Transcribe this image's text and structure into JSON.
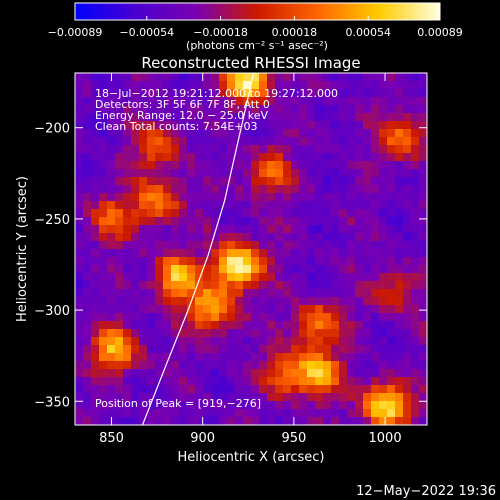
{
  "chart_data": {
    "type": "heatmap",
    "title": "Reconstructed RHESSI Image",
    "xlabel": "Heliocentric X (arcsec)",
    "ylabel": "Heliocentric Y (arcsec)",
    "xlim": [
      830,
      1023
    ],
    "ylim": [
      -363,
      -170
    ],
    "x_ticks": [
      850,
      900,
      950,
      1000
    ],
    "x_tick_labels": [
      "850",
      "900",
      "950",
      "1000"
    ],
    "y_ticks": [
      -200,
      -250,
      -300,
      -350
    ],
    "y_tick_labels": [
      "−200",
      "−250",
      "−300",
      "−350"
    ],
    "colorbar": {
      "min": -0.00089,
      "max": 0.00089,
      "ticks": [
        -0.00089,
        -0.00054,
        -0.00018,
        0.00018,
        0.00054,
        0.00089
      ],
      "tick_labels": [
        "−0.00089",
        "−0.00054",
        "−0.00018",
        "0.00018",
        "0.00054",
        "0.00089"
      ],
      "unit_label": "(photons cm⁻² s⁻¹ asec⁻²)"
    },
    "annotations": [
      "18−Jul−2012 19:21:12.000 to 19:27:12.000",
      "Detectors: 3F 5F 6F 7F 8F, Att 0",
      "Energy Range: 12.0 − 25.0 keV",
      "Clean     Total counts: 7.54E+03"
    ],
    "peak_label": "Position of Peak = [919,−276]",
    "peak_position": [
      919,
      -276
    ],
    "sources": [
      {
        "x": 919,
        "y": -276,
        "peak": 1.0
      },
      {
        "x": 925,
        "y": -174,
        "peak": 0.95
      },
      {
        "x": 1000,
        "y": -352,
        "peak": 0.9
      },
      {
        "x": 885,
        "y": -282,
        "peak": 0.75
      },
      {
        "x": 905,
        "y": -300,
        "peak": 0.7
      },
      {
        "x": 852,
        "y": -322,
        "peak": 0.7
      },
      {
        "x": 963,
        "y": -335,
        "peak": 0.7
      },
      {
        "x": 875,
        "y": -240,
        "peak": 0.6
      },
      {
        "x": 962,
        "y": -308,
        "peak": 0.55
      },
      {
        "x": 1010,
        "y": -205,
        "peak": 0.55
      },
      {
        "x": 875,
        "y": -210,
        "peak": 0.5
      },
      {
        "x": 935,
        "y": -225,
        "peak": 0.5
      },
      {
        "x": 850,
        "y": -250,
        "peak": 0.45
      },
      {
        "x": 945,
        "y": -335,
        "peak": 0.45
      },
      {
        "x": 1005,
        "y": -290,
        "peak": 0.4
      }
    ],
    "limb": [
      [
        867,
        -363
      ],
      [
        880,
        -330
      ],
      [
        892,
        -300
      ],
      [
        903,
        -270
      ],
      [
        912,
        -240
      ],
      [
        920,
        -205
      ],
      [
        928,
        -170
      ]
    ],
    "colormap": [
      "#0000ff",
      "#4b00d0",
      "#7a00b0",
      "#cc1a00",
      "#ff6600",
      "#ffcc00",
      "#ffffe0"
    ]
  },
  "footer": {
    "timestamp": "12−May−2022 19:36"
  }
}
